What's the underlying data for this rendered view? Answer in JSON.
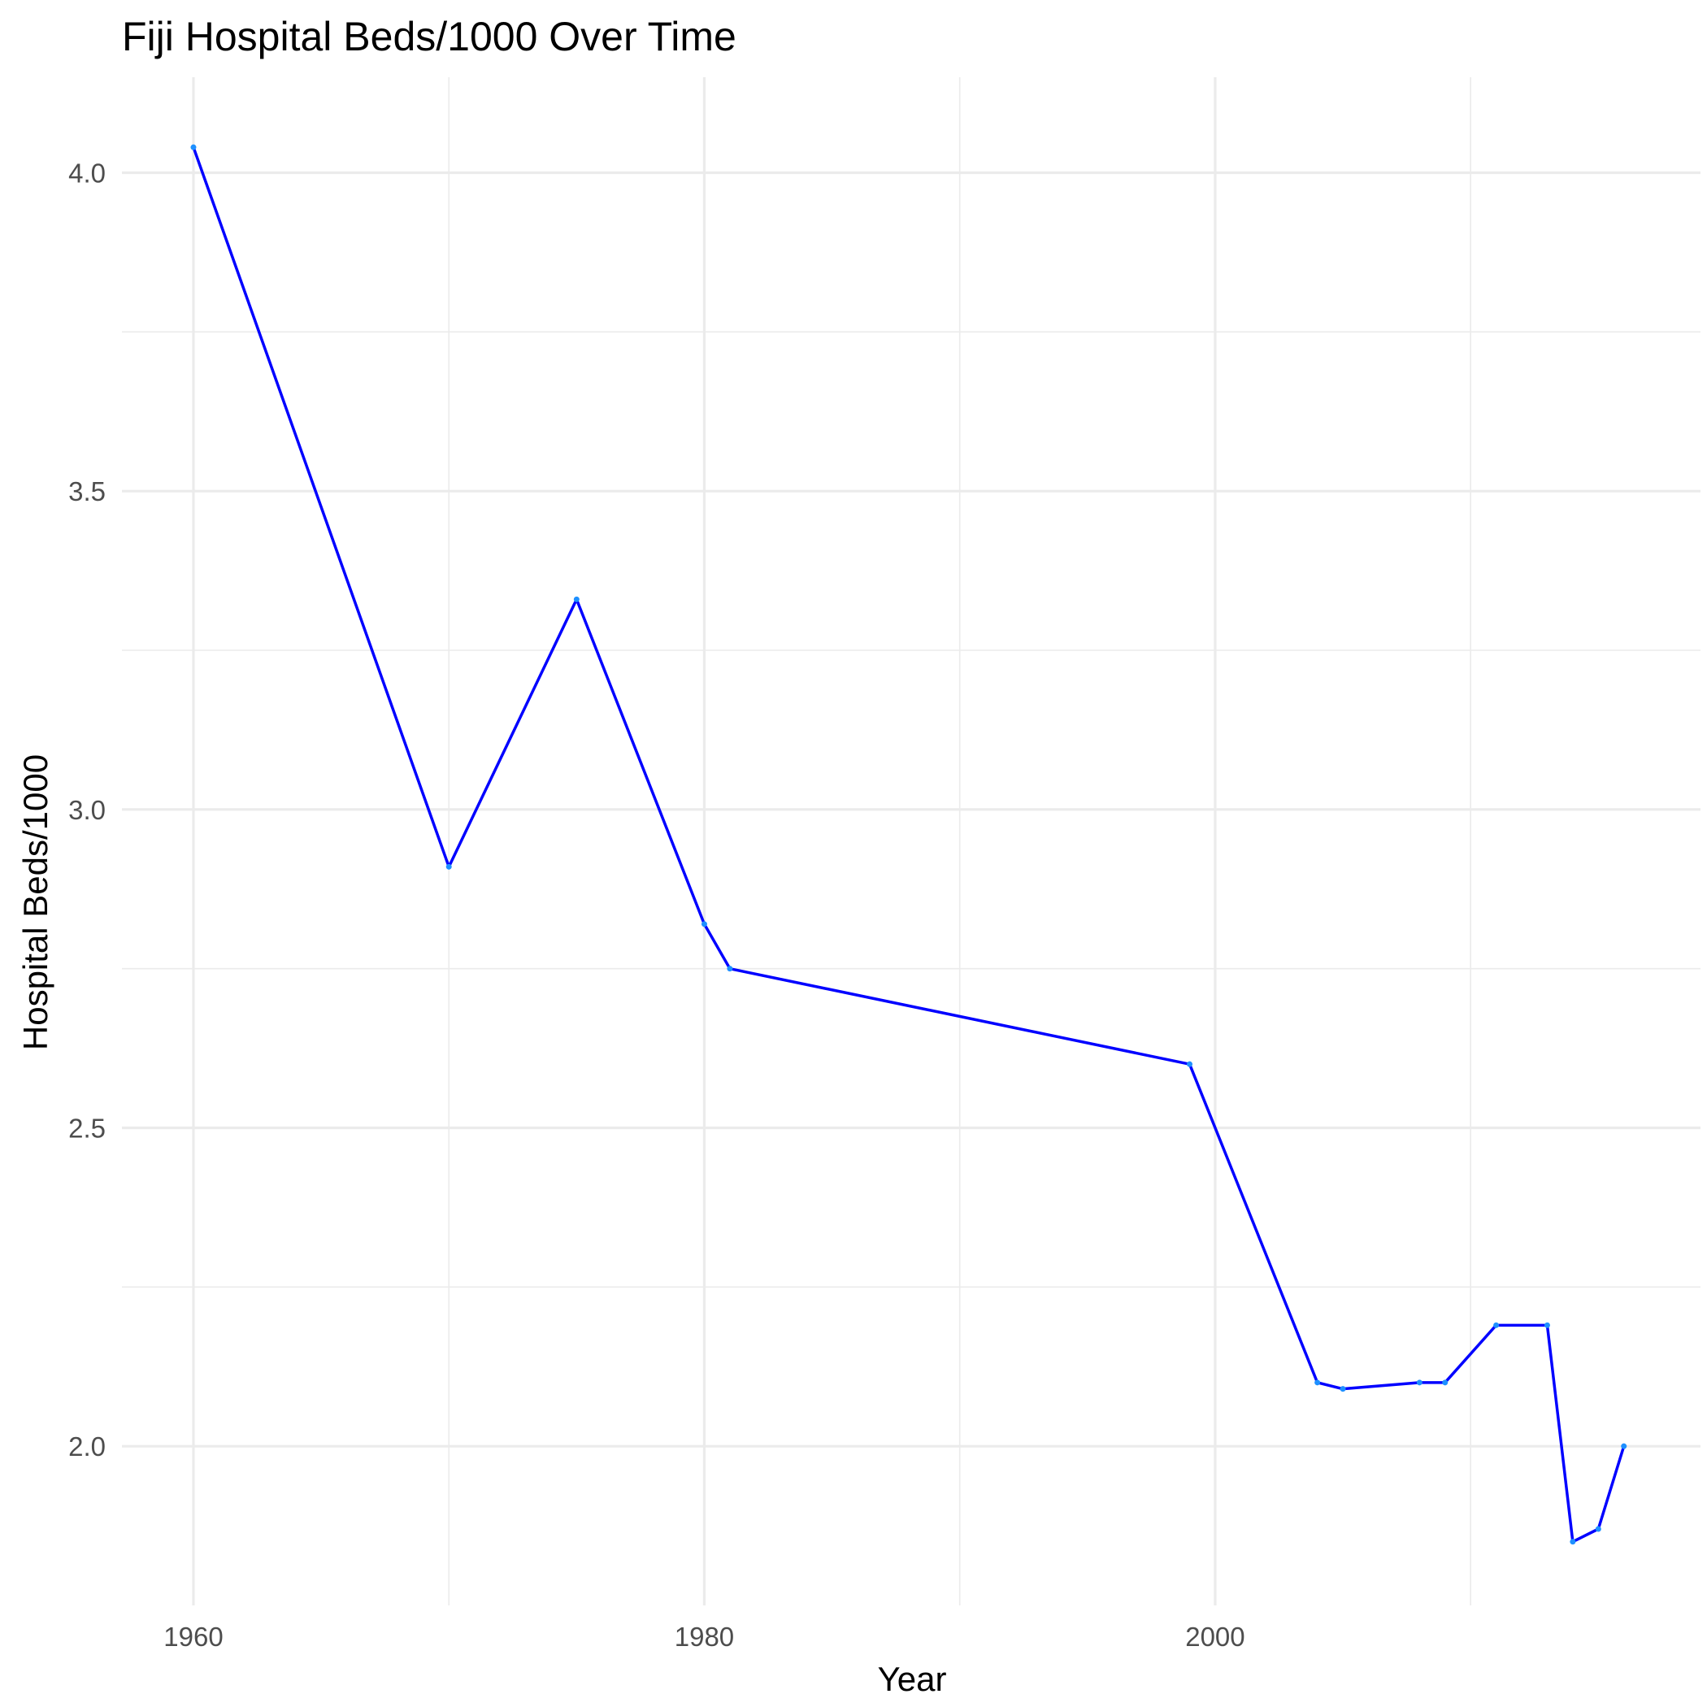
{
  "chart_data": {
    "type": "line",
    "title": "Fiji Hospital Beds/1000 Over Time",
    "xlabel": "Year",
    "ylabel": "Hospital Beds/1000",
    "xlim": [
      1957.2,
      2019.0
    ],
    "ylim": [
      1.75,
      4.15
    ],
    "x_ticks": [
      1960,
      1980,
      2000
    ],
    "x_tick_labels": [
      "1960",
      "1980",
      "2000"
    ],
    "x_minor_ticks": [
      1970,
      1990,
      2010
    ],
    "y_ticks": [
      2.0,
      2.5,
      3.0,
      3.5,
      4.0
    ],
    "y_tick_labels": [
      "2.0",
      "2.5",
      "3.0",
      "3.5",
      "4.0"
    ],
    "y_minor_ticks": [
      2.25,
      2.75,
      3.25,
      3.75
    ],
    "grid": true,
    "colors": {
      "line": "#0000ff",
      "points": "#1e90ff",
      "grid": "#ebebeb"
    },
    "series": [
      {
        "x": [
          1960,
          1970,
          1975,
          1980,
          1981,
          1999,
          2004,
          2005,
          2008,
          2009,
          2011,
          2013,
          2014,
          2015,
          2016
        ],
        "y": [
          4.04,
          2.91,
          3.33,
          2.82,
          2.75,
          2.6,
          2.1,
          2.09,
          2.1,
          2.1,
          2.19,
          2.19,
          1.85,
          1.87,
          2.0
        ]
      }
    ]
  }
}
